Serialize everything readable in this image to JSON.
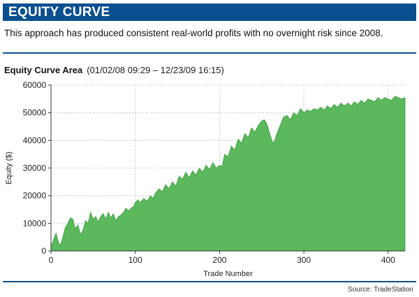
{
  "header": {
    "title": "EQUITY CURVE",
    "subtitle": "This approach has produced consistent real-world profits with no overnight risk since 2008."
  },
  "chart_heading": {
    "title": "Equity Curve Area",
    "range": "(01/02/08 09:29 – 12/23/09 16:15)"
  },
  "footer": {
    "source": "Source: TradeStation"
  },
  "colors": {
    "banner": "#0a4f8f",
    "area_fill": "#5cb85c",
    "area_edge": "#3e9a3e"
  },
  "chart_data": {
    "type": "area",
    "title": "Equity Curve Area",
    "xlabel": "Trade Number",
    "ylabel": "Equity ($)",
    "xlim": [
      0,
      420
    ],
    "ylim": [
      0,
      60000
    ],
    "x_ticks": [
      0,
      100,
      200,
      300,
      400
    ],
    "y_ticks": [
      0,
      10000,
      20000,
      30000,
      40000,
      50000,
      60000
    ],
    "grid": "dotted",
    "series": [
      {
        "x": [
          0,
          3,
          6,
          9,
          11,
          14,
          17,
          20,
          23,
          26,
          29,
          32,
          35,
          38,
          41,
          44,
          47,
          50,
          53,
          56,
          59,
          62,
          65,
          68,
          71,
          74,
          77,
          80,
          83,
          86,
          89,
          92,
          95,
          98,
          100,
          103,
          106,
          110,
          114,
          118,
          121,
          124,
          128,
          132,
          136,
          140,
          144,
          148,
          152,
          156,
          160,
          164,
          168,
          172,
          176,
          180,
          184,
          188,
          192,
          196,
          200,
          203,
          206,
          210,
          214,
          218,
          222,
          226,
          230,
          234,
          238,
          242,
          246,
          250,
          253,
          256,
          258,
          260,
          262,
          264,
          266,
          268,
          270,
          272,
          274,
          276,
          280,
          284,
          288,
          292,
          296,
          300,
          304,
          308,
          312,
          316,
          320,
          324,
          328,
          332,
          336,
          340,
          344,
          348,
          352,
          356,
          360,
          364,
          368,
          372,
          376,
          380,
          384,
          388,
          392,
          396,
          400,
          404,
          408,
          412,
          416,
          420
        ],
        "values": [
          1500,
          4000,
          6500,
          3000,
          2000,
          5000,
          8500,
          10000,
          12000,
          11500,
          8000,
          9500,
          6000,
          7500,
          11000,
          10000,
          14000,
          11500,
          12500,
          10500,
          12500,
          13500,
          11500,
          14000,
          12000,
          13500,
          11000,
          12500,
          13000,
          14000,
          15500,
          14500,
          15500,
          16000,
          17500,
          18500,
          17500,
          19000,
          18000,
          20000,
          19000,
          21000,
          22500,
          21500,
          24000,
          22500,
          25000,
          23500,
          27000,
          26000,
          28500,
          26500,
          29000,
          27500,
          30000,
          28500,
          31000,
          29500,
          32000,
          30000,
          31000,
          30500,
          35000,
          34000,
          38000,
          36500,
          40500,
          39000,
          42500,
          41000,
          44500,
          43000,
          45500,
          47000,
          47500,
          46000,
          44000,
          42000,
          40000,
          39000,
          40500,
          42500,
          44000,
          45500,
          47000,
          48500,
          49000,
          47500,
          50000,
          49000,
          51500,
          50000,
          51000,
          50500,
          51500,
          51000,
          52000,
          51000,
          52500,
          51500,
          53000,
          52000,
          53500,
          52500,
          53500,
          52500,
          54000,
          53000,
          54500,
          53500,
          55000,
          54500,
          54000,
          55500,
          54500,
          55500,
          55000,
          54500,
          56000,
          55500,
          55000,
          55500
        ]
      }
    ]
  }
}
